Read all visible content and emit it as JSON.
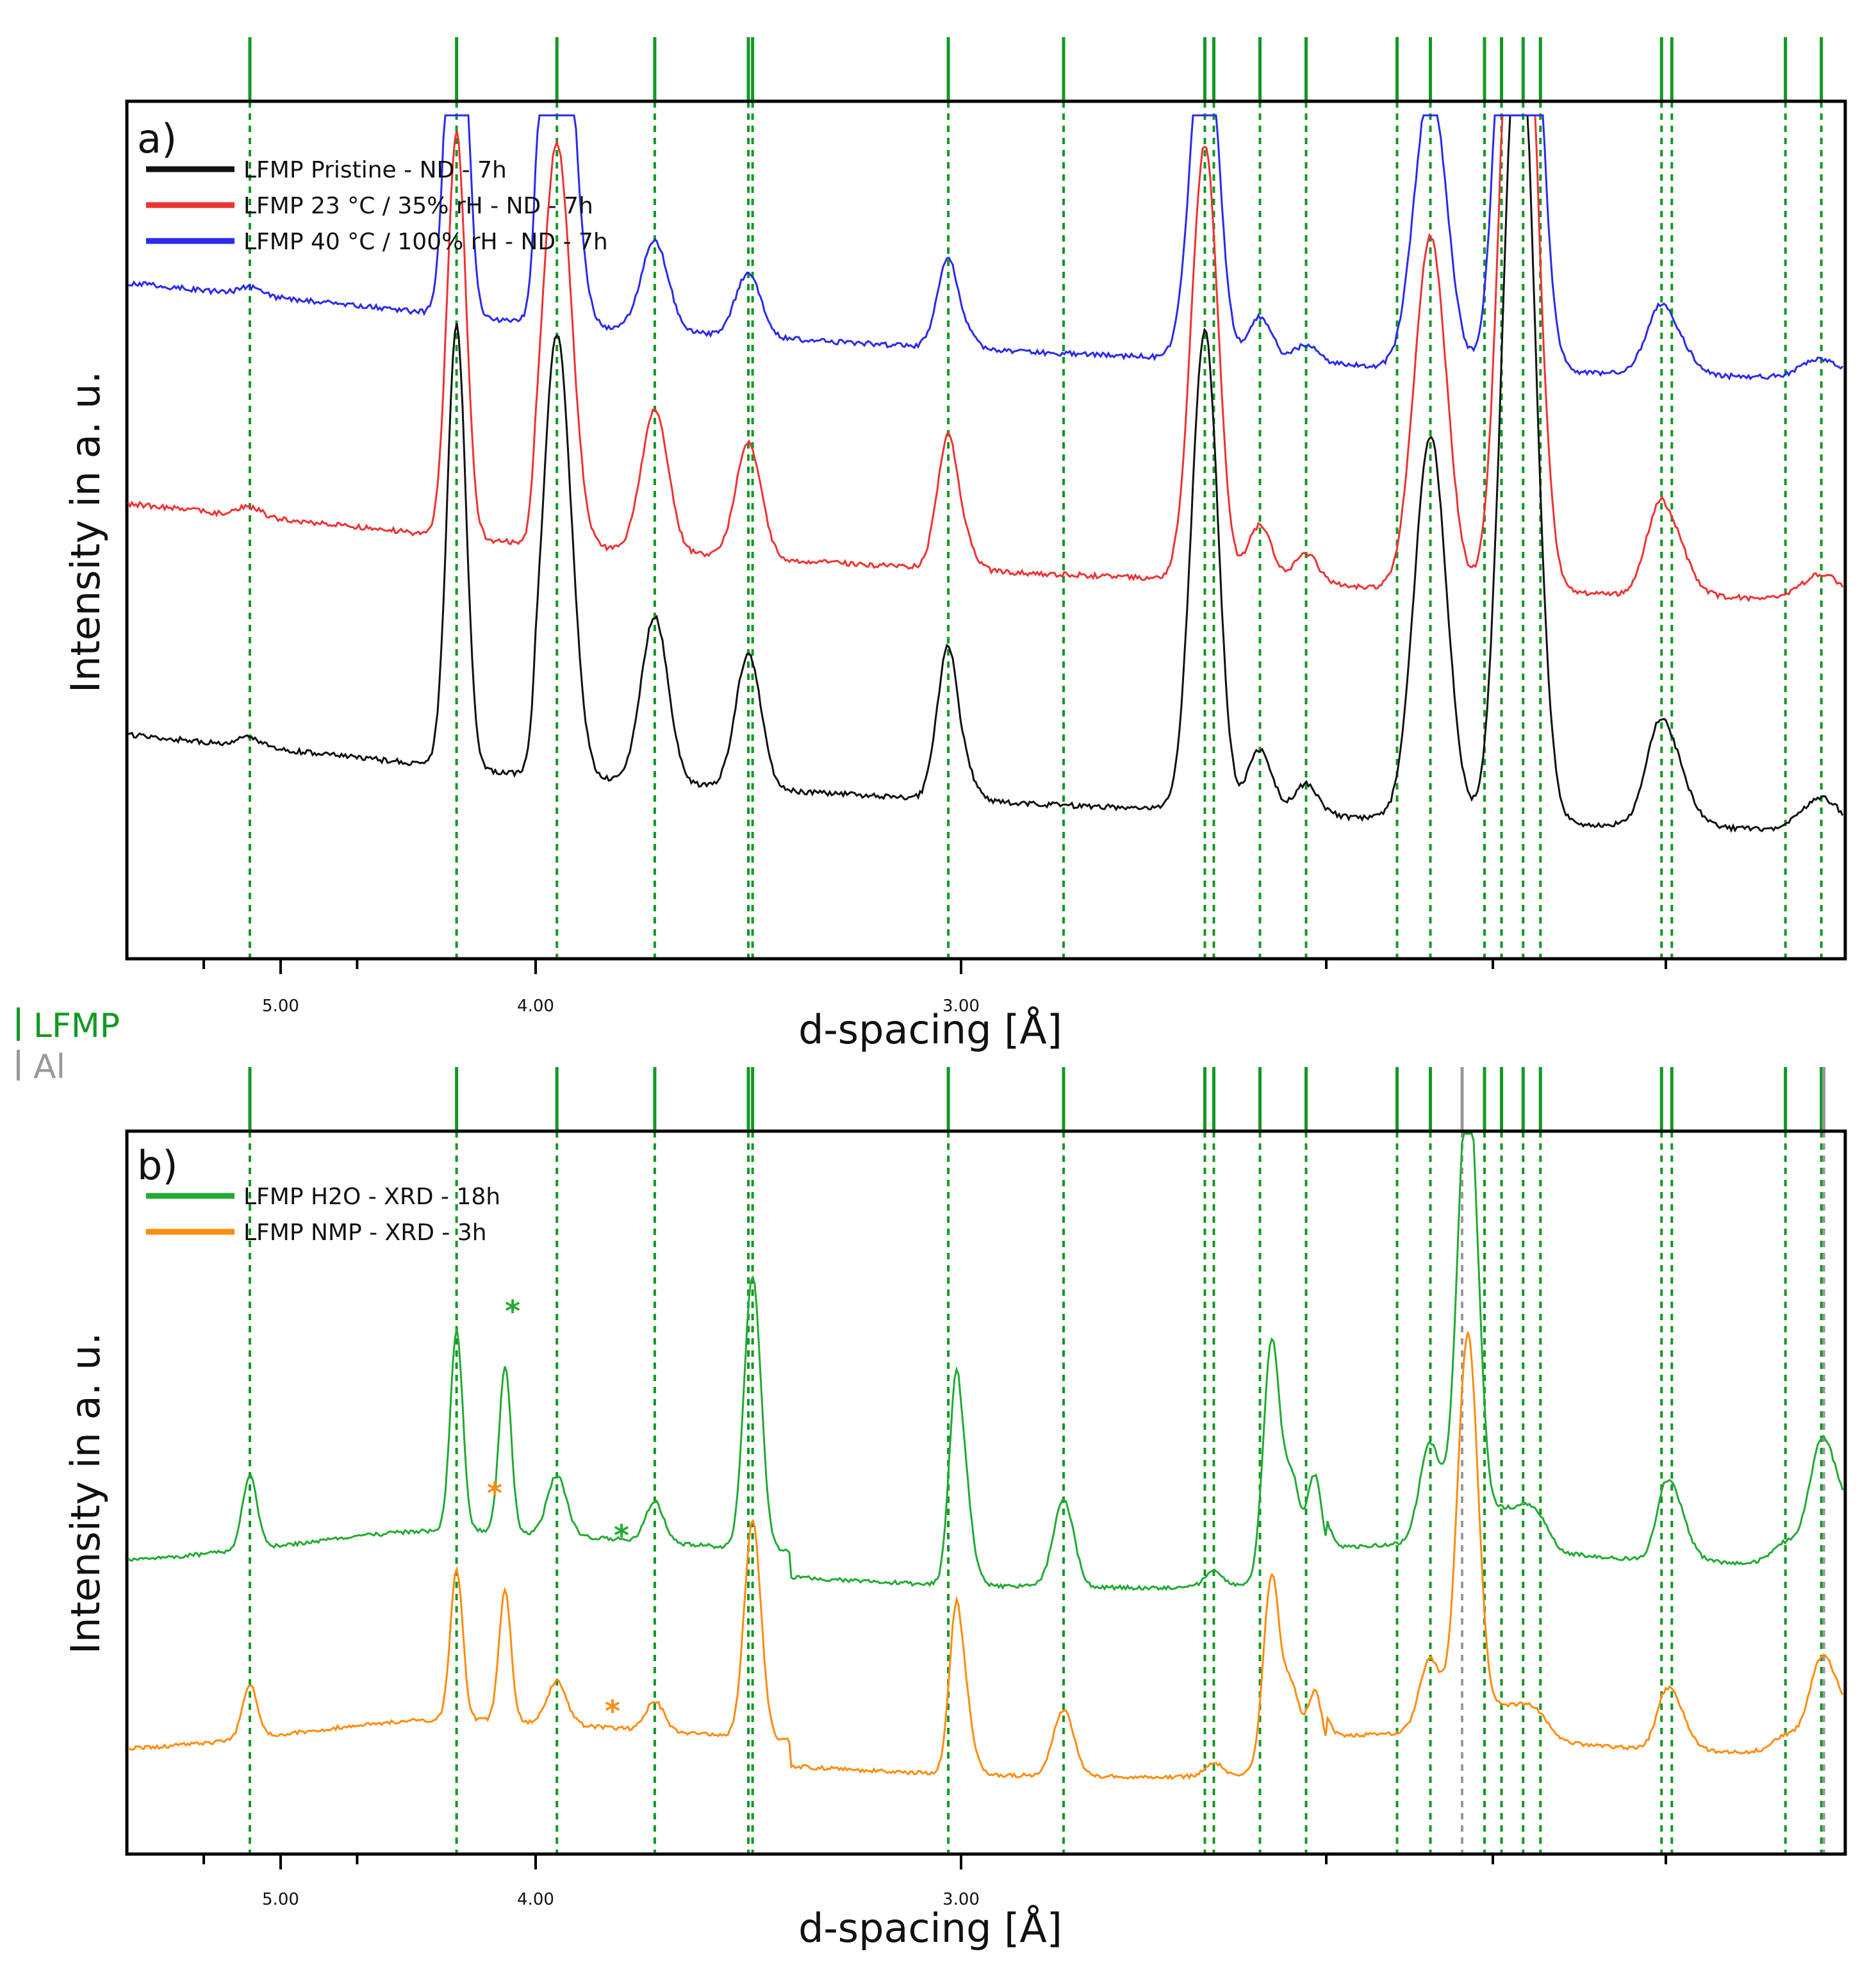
{
  "reference_legend": [
    {
      "label": "LFMP",
      "color": "#119922"
    },
    {
      "label": "Al",
      "color": "#999999"
    }
  ],
  "reference_lines": {
    "LFMP": [
      5.12,
      4.31,
      3.95,
      3.72,
      3.5,
      3.49,
      3.03,
      2.84,
      2.61,
      2.595,
      2.515,
      2.435,
      2.315,
      2.275,
      2.21,
      2.19,
      2.165,
      2.145,
      2.005,
      1.995,
      1.9,
      1.87
    ],
    "Al": [
      2.24,
      1.87
    ]
  },
  "colors": {
    "pristine": "#111111",
    "rh35": "#ee3333",
    "rh100": "#2a2aee",
    "h2o": "#22aa33",
    "nmp": "#ff8c10",
    "lfmp": "#119922",
    "al": "#999999"
  },
  "chart_data": [
    {
      "type": "line",
      "panel": "a)",
      "xlabel": "d-spacing [Å]",
      "ylabel": "Intensity in a. u.",
      "x_ticks": [
        "5.00",
        "4.00",
        "3.00"
      ],
      "legend_position": "top-left",
      "series": [
        {
          "name": "LFMP Pristine - ND - 7h",
          "color": "#111111",
          "baseline": 0.13,
          "peaks": [
            [
              5.12,
              0.015
            ],
            [
              4.31,
              0.69
            ],
            [
              3.95,
              0.69
            ],
            [
              3.72,
              0.26
            ],
            [
              3.5,
              0.21
            ],
            [
              3.03,
              0.24
            ],
            [
              2.61,
              0.75
            ],
            [
              2.515,
              0.1
            ],
            [
              2.435,
              0.05
            ],
            [
              2.275,
              0.6
            ],
            [
              2.17,
              1.3
            ],
            [
              2.005,
              0.17
            ],
            [
              1.87,
              0.05
            ]
          ]
        },
        {
          "name": "LFMP 23 °C / 35% rH - ND - 7h",
          "color": "#ee3333",
          "baseline": 0.49,
          "peaks": [
            [
              5.12,
              0.015
            ],
            [
              4.31,
              0.63
            ],
            [
              3.95,
              0.63
            ],
            [
              3.72,
              0.22
            ],
            [
              3.5,
              0.18
            ],
            [
              3.03,
              0.21
            ],
            [
              2.61,
              0.68
            ],
            [
              2.515,
              0.09
            ],
            [
              2.435,
              0.05
            ],
            [
              2.275,
              0.55
            ],
            [
              2.17,
              1.3
            ],
            [
              2.005,
              0.15
            ],
            [
              1.87,
              0.04
            ]
          ]
        },
        {
          "name": "LFMP 40 °C / 100% rH - ND - 7h",
          "color": "#2a2aee",
          "baseline": 0.835,
          "peaks": [
            [
              5.12,
              0.012
            ],
            [
              4.31,
              0.75
            ],
            [
              3.95,
              0.75
            ],
            [
              3.72,
              0.14
            ],
            [
              3.5,
              0.1
            ],
            [
              3.03,
              0.14
            ],
            [
              2.61,
              0.57
            ],
            [
              2.515,
              0.07
            ],
            [
              2.435,
              0.03
            ],
            [
              2.275,
              0.44
            ],
            [
              2.17,
              1.3
            ],
            [
              2.005,
              0.11
            ],
            [
              1.87,
              0.03
            ]
          ]
        }
      ]
    },
    {
      "type": "line",
      "panel": "b)",
      "xlabel": "d-spacing [Å]",
      "ylabel": "Intensity in a. u.",
      "x_ticks": [
        "5.00",
        "4.00",
        "3.00"
      ],
      "legend_position": "top-left",
      "annotations": [
        "*",
        "*",
        "*",
        "*"
      ],
      "series": [
        {
          "name": "LFMP H2O - XRD - 18h",
          "color": "#22aa33",
          "peaks": [
            [
              5.12,
              0.22
            ],
            [
              4.31,
              0.6
            ],
            [
              4.12,
              0.5
            ],
            [
              3.95,
              0.18
            ],
            [
              3.72,
              0.12
            ],
            [
              3.49,
              0.82
            ],
            [
              3.01,
              0.65
            ],
            [
              2.84,
              0.26
            ],
            [
              2.595,
              0.05
            ],
            [
              2.495,
              0.72
            ],
            [
              2.46,
              0.3
            ],
            [
              2.42,
              0.3
            ],
            [
              2.275,
              0.3
            ],
            [
              2.23,
              1.4
            ],
            [
              2.19,
              0.1
            ],
            [
              2.165,
              0.1
            ],
            [
              2.145,
              0.08
            ],
            [
              2.0,
              0.2
            ],
            [
              1.99,
              0.06
            ],
            [
              1.9,
              0.06
            ],
            [
              1.87,
              0.35
            ],
            [
              1.85,
              0.14
            ]
          ]
        },
        {
          "name": "LFMP NMP - XRD - 3h",
          "color": "#ff8c10",
          "peaks": [
            [
              5.12,
              0.16
            ],
            [
              4.31,
              0.45
            ],
            [
              4.12,
              0.39
            ],
            [
              3.95,
              0.13
            ],
            [
              3.72,
              0.09
            ],
            [
              3.49,
              0.65
            ],
            [
              3.01,
              0.52
            ],
            [
              2.84,
              0.2
            ],
            [
              2.595,
              0.04
            ],
            [
              2.495,
              0.58
            ],
            [
              2.46,
              0.24
            ],
            [
              2.42,
              0.22
            ],
            [
              2.275,
              0.22
            ],
            [
              2.23,
              1.2
            ],
            [
              2.19,
              0.08
            ],
            [
              2.165,
              0.08
            ],
            [
              2.145,
              0.06
            ],
            [
              2.0,
              0.15
            ],
            [
              1.99,
              0.05
            ],
            [
              1.9,
              0.05
            ],
            [
              1.87,
              0.27
            ],
            [
              1.85,
              0.11
            ]
          ]
        }
      ]
    }
  ]
}
